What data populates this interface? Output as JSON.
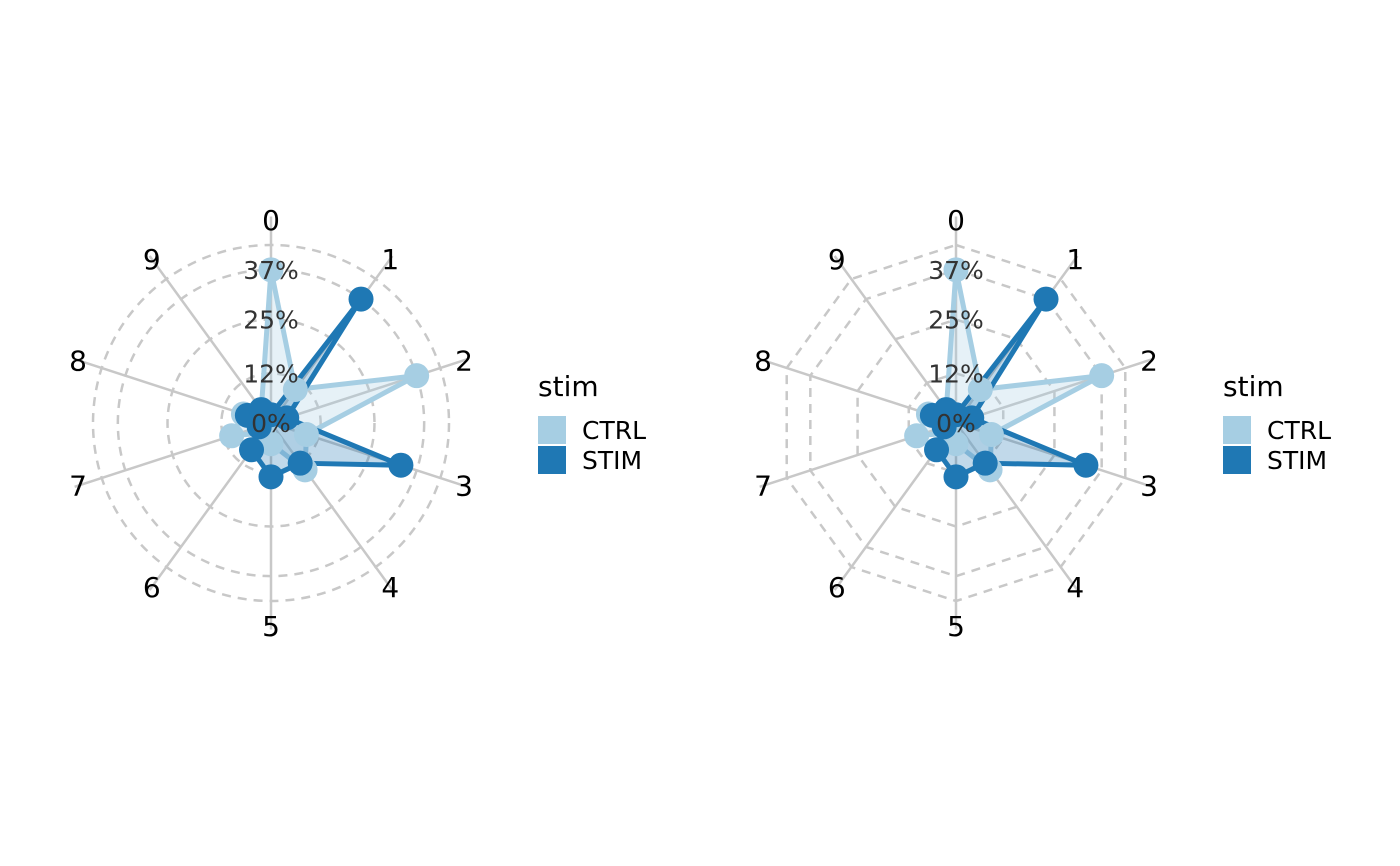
{
  "chart_data": [
    {
      "type": "radar",
      "grid_shape": "circle",
      "categories": [
        "0",
        "1",
        "2",
        "3",
        "4",
        "5",
        "6",
        "7",
        "8",
        "9"
      ],
      "rmax": 43,
      "ticks": [
        0,
        12,
        25,
        37
      ],
      "tick_labels": [
        "0%",
        "12%",
        "25%",
        "37%"
      ],
      "legend_title": "stim",
      "legend_position": "right",
      "series": [
        {
          "name": "CTRL",
          "color": "#A6CEE3",
          "values": [
            37,
            10,
            37,
            9,
            14,
            5,
            3,
            10,
            7,
            4
          ]
        },
        {
          "name": "STIM",
          "color": "#1F78B4",
          "values": [
            2,
            37,
            4,
            33,
            12,
            13,
            8,
            3,
            6,
            4
          ]
        }
      ]
    },
    {
      "type": "radar",
      "grid_shape": "polygon",
      "categories": [
        "0",
        "1",
        "2",
        "3",
        "4",
        "5",
        "6",
        "7",
        "8",
        "9"
      ],
      "rmax": 43,
      "ticks": [
        0,
        12,
        25,
        37
      ],
      "tick_labels": [
        "0%",
        "12%",
        "25%",
        "37%"
      ],
      "legend_title": "stim",
      "legend_position": "right",
      "series": [
        {
          "name": "CTRL",
          "color": "#A6CEE3",
          "values": [
            37,
            10,
            37,
            9,
            14,
            5,
            3,
            10,
            7,
            4
          ]
        },
        {
          "name": "STIM",
          "color": "#1F78B4",
          "values": [
            2,
            37,
            4,
            33,
            12,
            13,
            8,
            3,
            6,
            4
          ]
        }
      ]
    }
  ]
}
